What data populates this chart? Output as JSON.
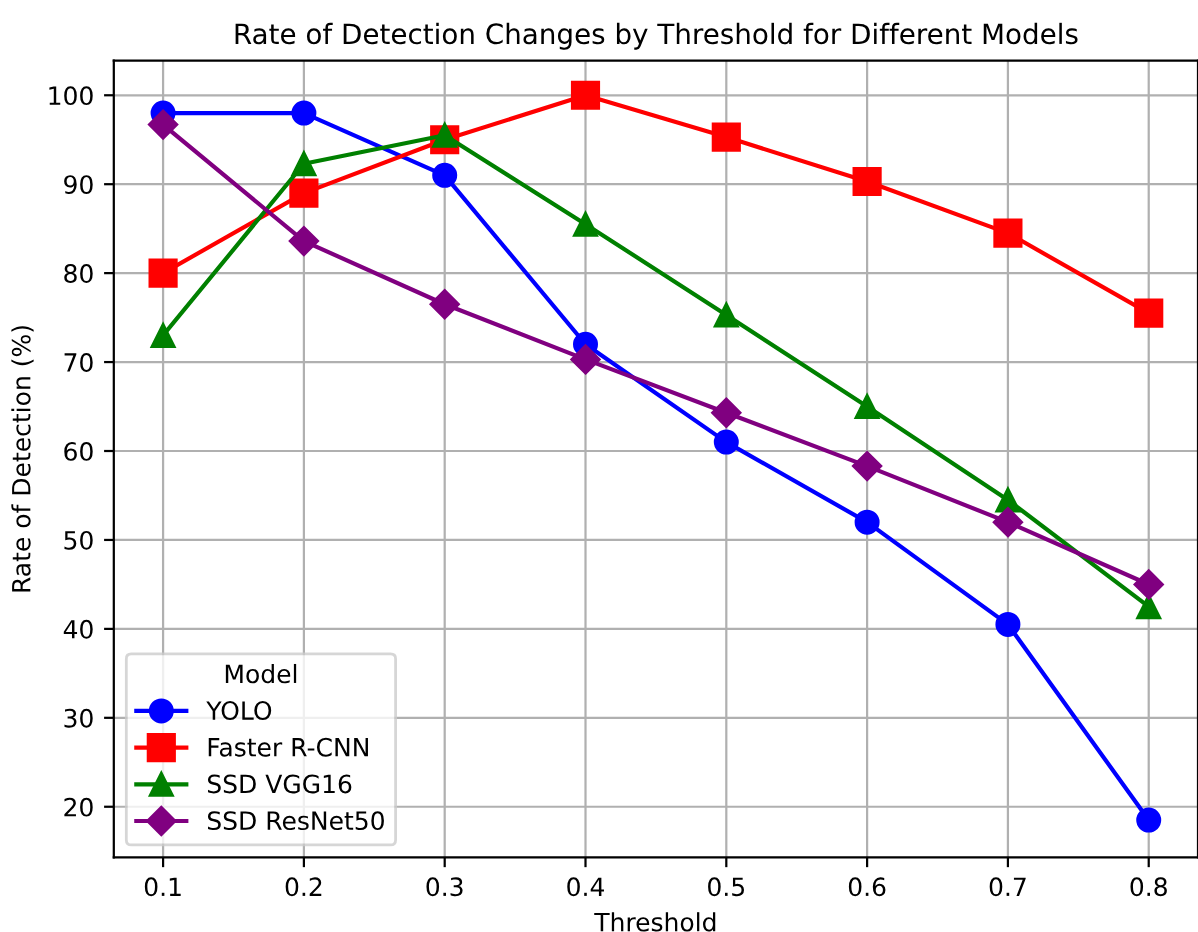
{
  "chart_data": {
    "type": "line",
    "title": "Rate of Detection Changes by Threshold for Different Models",
    "xlabel": "Threshold",
    "ylabel": "Rate of Detection (%)",
    "legend_title": "Model",
    "x": [
      0.1,
      0.2,
      0.3,
      0.4,
      0.5,
      0.6,
      0.7,
      0.8
    ],
    "series": [
      {
        "name": "YOLO",
        "color": "#0000ff",
        "marker": "circle",
        "values": [
          98,
          98,
          91,
          72,
          61,
          52,
          40.5,
          18.5
        ]
      },
      {
        "name": "Faster R-CNN",
        "color": "#ff0000",
        "marker": "square",
        "values": [
          80,
          89,
          95,
          100,
          95.3,
          90.3,
          84.5,
          75.5
        ]
      },
      {
        "name": "SSD VGG16",
        "color": "#008000",
        "marker": "triangle",
        "values": [
          73,
          92.3,
          95.5,
          85.5,
          75.3,
          65,
          54.5,
          42.5
        ]
      },
      {
        "name": "SSD ResNet50",
        "color": "#800080",
        "marker": "diamond",
        "values": [
          96.7,
          83.6,
          76.5,
          70.3,
          64.3,
          58.3,
          52,
          45
        ]
      }
    ],
    "xlim": [
      0.065,
      0.835
    ],
    "ylim": [
      14.3,
      103.9
    ],
    "xticks": [
      0.1,
      0.2,
      0.3,
      0.4,
      0.5,
      0.6,
      0.7,
      0.8
    ],
    "yticks": [
      20,
      30,
      40,
      50,
      60,
      70,
      80,
      90,
      100
    ],
    "grid": true,
    "legend": "bottom left",
    "line_style": "solid"
  }
}
